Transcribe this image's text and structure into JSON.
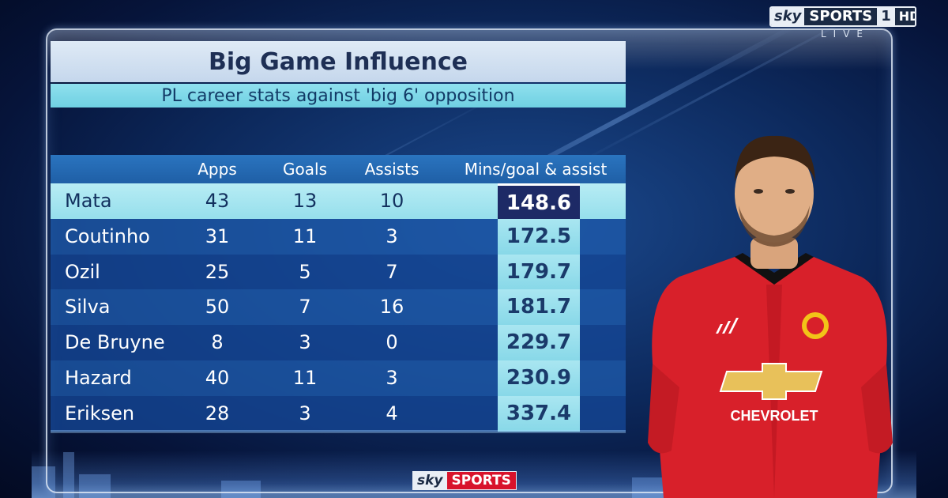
{
  "channel": {
    "sky": "sky",
    "sports": "SPORTS",
    "number": "1",
    "hd": "HD",
    "status": "LIVE"
  },
  "graphic": {
    "title": "Big Game Influence",
    "subtitle": "PL career stats against 'big 6' opposition",
    "columns": [
      "Apps",
      "Goals",
      "Assists",
      "Mins/goal & assist"
    ],
    "rows": [
      {
        "name": "Mata",
        "apps": "43",
        "goals": "13",
        "assists": "10",
        "mins": "148.6"
      },
      {
        "name": "Coutinho",
        "apps": "31",
        "goals": "11",
        "assists": "3",
        "mins": "172.5"
      },
      {
        "name": "Ozil",
        "apps": "25",
        "goals": "5",
        "assists": "7",
        "mins": "179.7"
      },
      {
        "name": "Silva",
        "apps": "50",
        "goals": "7",
        "assists": "16",
        "mins": "181.7"
      },
      {
        "name": "De Bruyne",
        "apps": "8",
        "goals": "3",
        "assists": "0",
        "mins": "229.7"
      },
      {
        "name": "Hazard",
        "apps": "40",
        "goals": "11",
        "assists": "3",
        "mins": "230.9"
      },
      {
        "name": "Eriksen",
        "apps": "28",
        "goals": "3",
        "assists": "4",
        "mins": "337.4"
      }
    ],
    "highlighted_row": "Mata"
  },
  "player": {
    "shirt_sponsor": "CHEVROLET",
    "kit_brand": "adidas"
  },
  "footer": {
    "sky": "sky",
    "sports": "SPORTS"
  },
  "colors": {
    "title_bg": "#dfeaf6",
    "subtitle_bg": "#8fe0ee",
    "highlight": "#1d2a66",
    "shirt": "#d8202a"
  }
}
